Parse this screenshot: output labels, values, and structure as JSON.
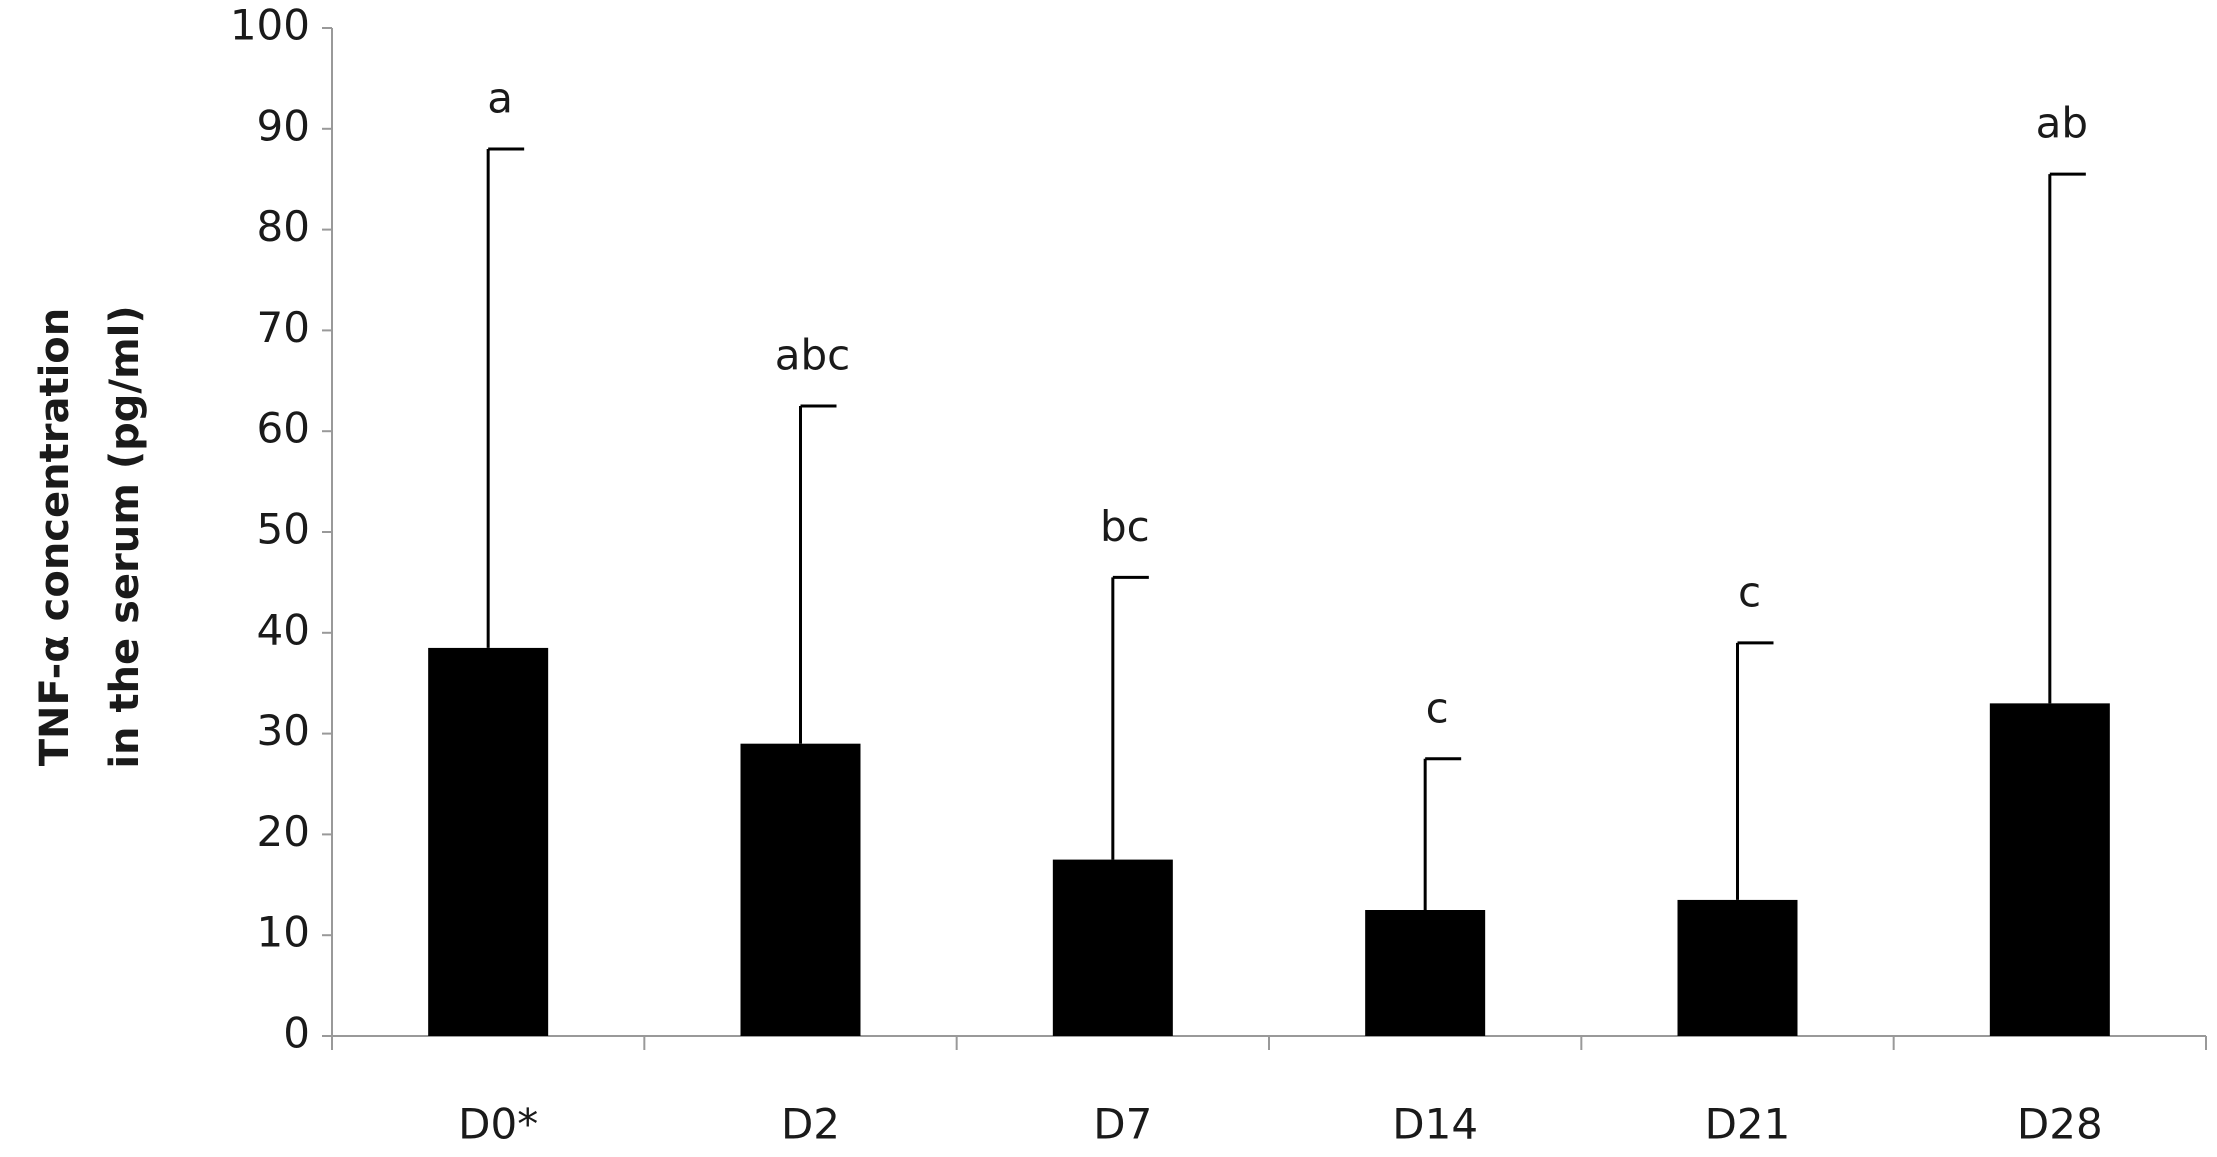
{
  "chart_data": {
    "type": "bar",
    "y_label": [
      "TNF-α concentration",
      "in the serum (pg/ml)"
    ],
    "categories": [
      "D0*",
      "D2",
      "D7",
      "D14",
      "D21",
      "D28"
    ],
    "values": [
      38.5,
      29,
      17.5,
      12.5,
      13.5,
      33
    ],
    "errors": [
      49.5,
      33.5,
      28,
      15,
      25.5,
      52.5
    ],
    "annotations": [
      "a",
      "abc",
      "bc",
      "c",
      "c",
      "ab"
    ],
    "color": "#000000",
    "ylim": [
      0,
      100
    ],
    "yticks": [
      0,
      10,
      20,
      30,
      40,
      50,
      60,
      70,
      80,
      90,
      100
    ],
    "grid": false
  }
}
